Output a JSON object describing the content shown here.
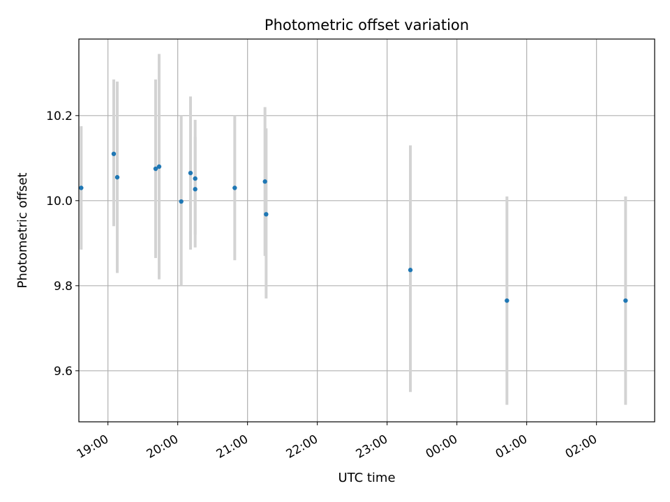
{
  "chart_data": {
    "type": "scatter",
    "title": "Photometric offset variation",
    "xlabel": "UTC time",
    "ylabel": "Photometric offset",
    "grid": true,
    "x_reference_date": "",
    "xlim": [
      "18:35",
      "02:50"
    ],
    "ylim": [
      9.48,
      10.38
    ],
    "x_ticks": [
      "19:00",
      "20:00",
      "21:00",
      "22:00",
      "23:00",
      "00:00",
      "01:00",
      "02:00"
    ],
    "y_ticks": [
      9.6,
      9.8,
      10.0,
      10.2
    ],
    "y_tick_labels": [
      "9.6",
      "9.8",
      "10.0",
      "10.2"
    ],
    "point_color": "#1f77b4",
    "errorbar_color": "#d3d3d3",
    "points": [
      {
        "time": "18:37",
        "y": 10.03,
        "err_low": 9.885,
        "err_high": 10.175
      },
      {
        "time": "19:05",
        "y": 10.11,
        "err_low": 9.94,
        "err_high": 10.285
      },
      {
        "time": "19:08",
        "y": 10.055,
        "err_low": 9.83,
        "err_high": 10.28
      },
      {
        "time": "19:41",
        "y": 10.075,
        "err_low": 9.865,
        "err_high": 10.285
      },
      {
        "time": "19:44",
        "y": 10.08,
        "err_low": 9.815,
        "err_high": 10.345
      },
      {
        "time": "20:03",
        "y": 9.998,
        "err_low": 9.8,
        "err_high": 10.2
      },
      {
        "time": "20:11",
        "y": 10.065,
        "err_low": 9.885,
        "err_high": 10.245
      },
      {
        "time": "20:15",
        "y": 10.052,
        "err_low": 9.92,
        "err_high": 10.19
      },
      {
        "time": "20:15",
        "y": 10.027,
        "err_low": 9.89,
        "err_high": 10.15
      },
      {
        "time": "20:49",
        "y": 10.03,
        "err_low": 9.86,
        "err_high": 10.2
      },
      {
        "time": "21:15",
        "y": 10.045,
        "err_low": 9.87,
        "err_high": 10.22
      },
      {
        "time": "21:16",
        "y": 9.968,
        "err_low": 9.77,
        "err_high": 10.17
      },
      {
        "time": "23:20",
        "y": 9.837,
        "err_low": 9.55,
        "err_high": 10.13
      },
      {
        "time": "00:43",
        "y": 9.765,
        "err_low": 9.52,
        "err_high": 10.01
      },
      {
        "time": "02:25",
        "y": 9.765,
        "err_low": 9.52,
        "err_high": 10.01
      }
    ]
  }
}
